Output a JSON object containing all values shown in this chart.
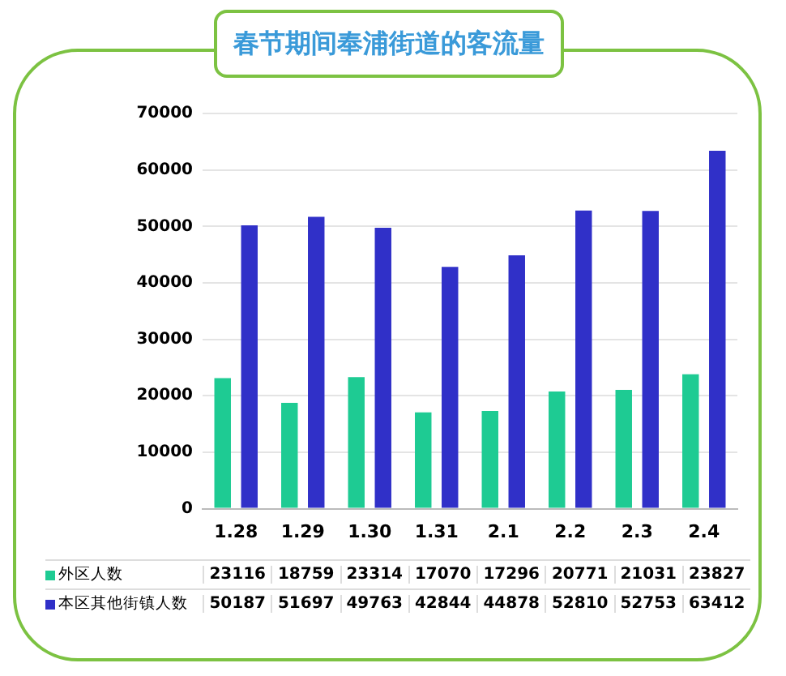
{
  "chart_data": {
    "type": "bar",
    "title": "春节期间奉浦街道的客流量",
    "categories": [
      "1.28",
      "1.29",
      "1.30",
      "1.31",
      "2.1",
      "2.2",
      "2.3",
      "2.4"
    ],
    "series": [
      {
        "name": "外区人数",
        "color": "#1ecb93",
        "values": [
          23116,
          18759,
          23314,
          17070,
          17296,
          20771,
          21031,
          23827
        ]
      },
      {
        "name": "本区其他街镇人数",
        "color": "#3030c8",
        "values": [
          50187,
          51697,
          49763,
          42844,
          44878,
          52810,
          52753,
          63412
        ]
      }
    ],
    "ylim": [
      0,
      70000
    ],
    "yticks": [
      0,
      10000,
      20000,
      30000,
      40000,
      50000,
      60000,
      70000
    ],
    "grid": "y",
    "legend": "bottom",
    "data_labels": true
  }
}
